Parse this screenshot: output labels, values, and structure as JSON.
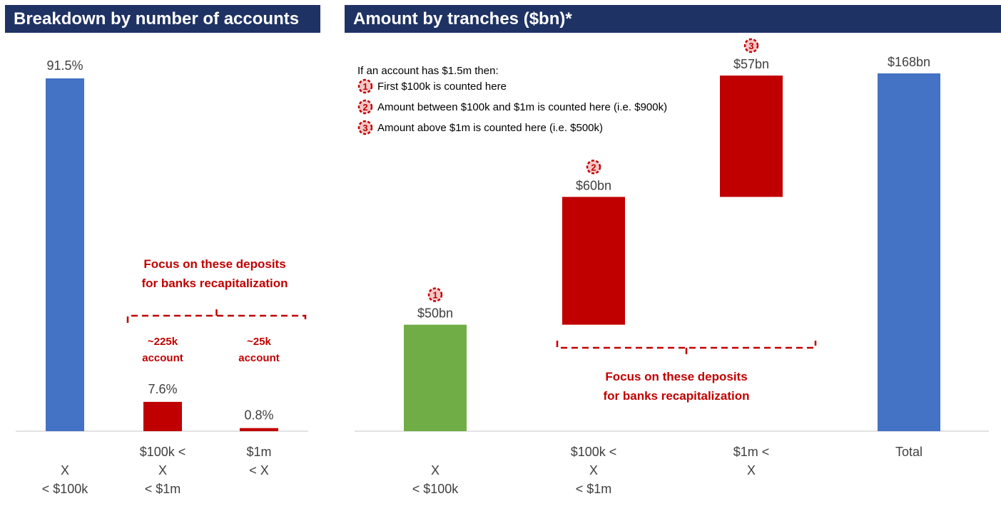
{
  "titles": {
    "left": "Breakdown by number of accounts",
    "right": "Amount by tranches ($bn)*"
  },
  "chart_data": [
    {
      "type": "bar",
      "title": "Breakdown by number of accounts",
      "categories": [
        [
          "X",
          "< $100k"
        ],
        [
          "$100k <",
          "X",
          "< $1m"
        ],
        [
          "$1m",
          "< X"
        ]
      ],
      "values": [
        91.5,
        7.6,
        0.8
      ],
      "value_labels": [
        "91.5%",
        "7.6%",
        "0.8%"
      ],
      "colors": [
        "#4472c4",
        "#c00000",
        "#c00000"
      ],
      "ylim": [
        0,
        100
      ],
      "account_notes": [
        [
          "~225k",
          "account"
        ],
        [
          "~25k",
          "account"
        ]
      ],
      "focus_text": [
        "Focus on these deposits",
        "for banks recapitalization"
      ]
    },
    {
      "type": "waterfall",
      "title": "Amount by tranches ($bn)*",
      "categories": [
        [
          "X",
          "< $100k"
        ],
        [
          "$100k <",
          "X",
          "< $1m"
        ],
        [
          "$1m <",
          "X"
        ],
        [
          "Total"
        ]
      ],
      "values": [
        50,
        60,
        57,
        168
      ],
      "value_labels": [
        "$50bn",
        "$60bn",
        "$57bn",
        "$168bn"
      ],
      "markers": [
        "1",
        "2",
        "3",
        ""
      ],
      "colors": [
        "#70ad47",
        "#c00000",
        "#c00000",
        "#4472c4"
      ],
      "ylim": [
        0,
        168
      ],
      "notes": {
        "intro": "If an account has $1.5m then:",
        "items": [
          {
            "num": "1",
            "text": "First $100k is counted here"
          },
          {
            "num": "2",
            "text": "Amount between $100k and $1m is counted here (i.e. $900k)"
          },
          {
            "num": "3",
            "text": "Amount above $1m is counted here (i.e. $500k)"
          }
        ]
      },
      "focus_text": [
        "Focus on these deposits",
        "for banks recapitalization"
      ]
    }
  ],
  "colors": {
    "header_bg": "#1f3264",
    "blue": "#4472c4",
    "red": "#c00000",
    "green": "#70ad47"
  }
}
